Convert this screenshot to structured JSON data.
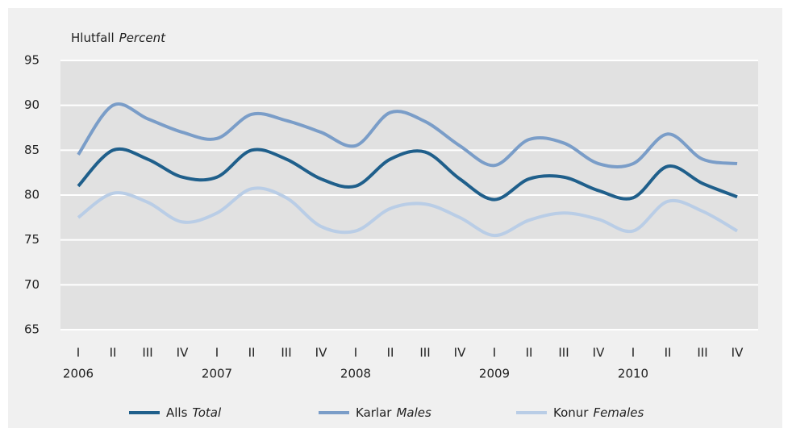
{
  "chart_data": {
    "type": "line",
    "y_label": {
      "is": "Hlutfall",
      "en": "Percent"
    },
    "categories": [
      "I",
      "II",
      "III",
      "IV",
      "I",
      "II",
      "III",
      "IV",
      "I",
      "II",
      "III",
      "IV",
      "I",
      "II",
      "III",
      "IV",
      "I",
      "II",
      "III",
      "IV"
    ],
    "years": [
      "2006",
      null,
      null,
      null,
      "2007",
      null,
      null,
      null,
      "2008",
      null,
      null,
      null,
      "2009",
      null,
      null,
      null,
      "2010",
      null,
      null,
      null
    ],
    "series": [
      {
        "name": "Alls",
        "name_en": "Total",
        "color": "#1f5f8b",
        "values": [
          81,
          85,
          84,
          82,
          82,
          85,
          84,
          81.8,
          81,
          84,
          84.8,
          81.8,
          79.5,
          81.8,
          82,
          80.5,
          79.7,
          83.2,
          81.3,
          79.8
        ]
      },
      {
        "name": "Karlar",
        "name_en": "Males",
        "color": "#7a9dc8",
        "values": [
          84.5,
          90,
          88.5,
          87,
          86.3,
          89,
          88.3,
          87,
          85.5,
          89.2,
          88.2,
          85.5,
          83.3,
          86.2,
          85.8,
          83.5,
          83.5,
          86.8,
          84,
          83.5
        ]
      },
      {
        "name": "Konur",
        "name_en": "Females",
        "color": "#b9cde6",
        "values": [
          77.5,
          80.2,
          79.2,
          77,
          78,
          80.7,
          79.7,
          76.5,
          76,
          78.5,
          79,
          77.5,
          75.5,
          77.2,
          78,
          77.3,
          76,
          79.3,
          78.2,
          76
        ]
      }
    ],
    "ylim": [
      65,
      95
    ],
    "yticks": [
      65,
      70,
      75,
      80,
      85,
      90,
      95
    ],
    "grid": true
  }
}
